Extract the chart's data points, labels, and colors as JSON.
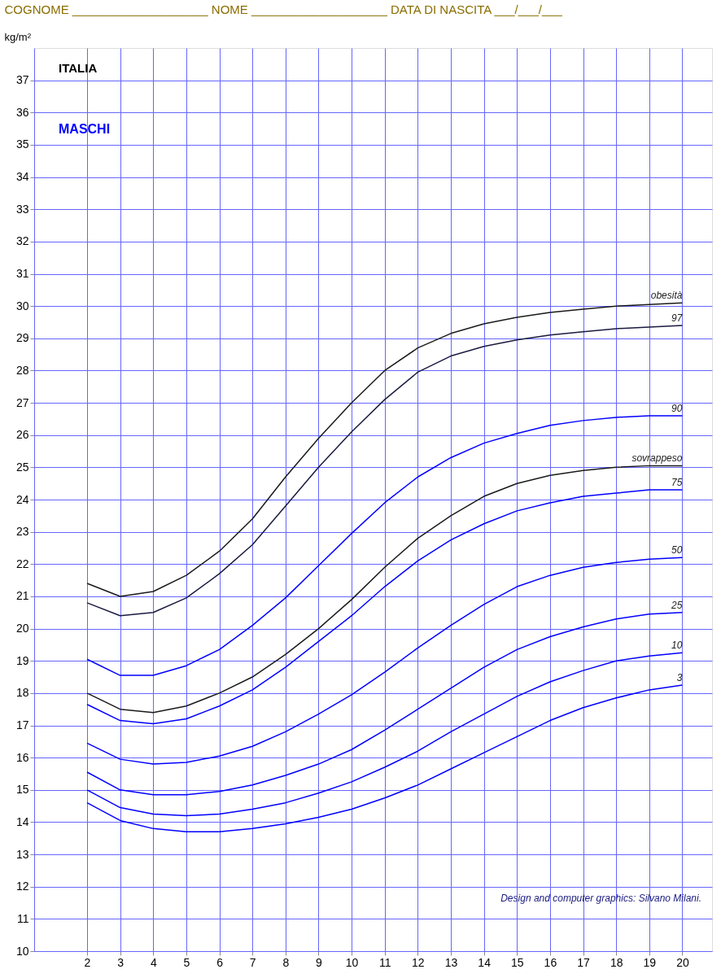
{
  "chart_data": {
    "type": "line",
    "title": "COGNOME ____________________   NOME ____________________   DATA DI NASCITA ___/___/___",
    "ylabel": "kg/m²",
    "x": [
      2,
      3,
      4,
      5,
      6,
      7,
      8,
      9,
      10,
      11,
      12,
      13,
      14,
      15,
      16,
      17,
      18,
      19,
      20
    ],
    "series": [
      {
        "name": "obesità",
        "color": "#1a1a1a",
        "values": [
          21.4,
          21.0,
          21.15,
          21.65,
          22.4,
          23.4,
          24.7,
          25.9,
          27.0,
          28.0,
          28.7,
          29.15,
          29.45,
          29.65,
          29.8,
          29.9,
          30.0,
          30.05,
          30.1
        ]
      },
      {
        "name": "97",
        "color": "#1a1a40",
        "values": [
          20.8,
          20.4,
          20.5,
          20.95,
          21.7,
          22.6,
          23.8,
          25.0,
          26.1,
          27.1,
          27.95,
          28.45,
          28.75,
          28.95,
          29.1,
          29.2,
          29.3,
          29.35,
          29.4
        ]
      },
      {
        "name": "90",
        "color": "#0000ff",
        "values": [
          19.05,
          18.55,
          18.55,
          18.85,
          19.35,
          20.1,
          20.95,
          21.95,
          22.95,
          23.9,
          24.7,
          25.3,
          25.75,
          26.05,
          26.3,
          26.45,
          26.55,
          26.6,
          26.6
        ]
      },
      {
        "name": "sovrappeso",
        "color": "#1a1a1a",
        "values": [
          18.0,
          17.5,
          17.4,
          17.6,
          18.0,
          18.5,
          19.2,
          20.0,
          20.9,
          21.9,
          22.8,
          23.5,
          24.1,
          24.5,
          24.75,
          24.9,
          25.0,
          25.05,
          25.05
        ]
      },
      {
        "name": "75",
        "color": "#0000ff",
        "values": [
          17.65,
          17.15,
          17.05,
          17.2,
          17.6,
          18.1,
          18.8,
          19.6,
          20.4,
          21.3,
          22.1,
          22.75,
          23.25,
          23.65,
          23.9,
          24.1,
          24.2,
          24.3,
          24.3
        ]
      },
      {
        "name": "50",
        "color": "#0000ff",
        "values": [
          16.45,
          15.95,
          15.8,
          15.85,
          16.05,
          16.35,
          16.8,
          17.35,
          17.95,
          18.65,
          19.4,
          20.1,
          20.75,
          21.3,
          21.65,
          21.9,
          22.05,
          22.15,
          22.2
        ]
      },
      {
        "name": "25",
        "color": "#0000ff",
        "values": [
          15.55,
          15.0,
          14.85,
          14.85,
          14.95,
          15.15,
          15.45,
          15.8,
          16.25,
          16.85,
          17.5,
          18.15,
          18.8,
          19.35,
          19.75,
          20.05,
          20.3,
          20.45,
          20.5
        ]
      },
      {
        "name": "10",
        "color": "#0000ff",
        "values": [
          15.0,
          14.45,
          14.25,
          14.2,
          14.25,
          14.4,
          14.6,
          14.9,
          15.25,
          15.7,
          16.2,
          16.8,
          17.35,
          17.9,
          18.35,
          18.7,
          19.0,
          19.15,
          19.25
        ]
      },
      {
        "name": "3",
        "color": "#0000ff",
        "values": [
          14.6,
          14.05,
          13.8,
          13.7,
          13.7,
          13.8,
          13.95,
          14.15,
          14.4,
          14.75,
          15.15,
          15.65,
          16.15,
          16.65,
          17.15,
          17.55,
          17.85,
          18.1,
          18.25
        ]
      }
    ],
    "xlim": [
      0.4,
      20.9
    ],
    "xticks": [
      2,
      3,
      4,
      5,
      6,
      7,
      8,
      9,
      10,
      11,
      12,
      13,
      14,
      15,
      16,
      17,
      18,
      19,
      20
    ],
    "ylim": [
      10,
      38
    ],
    "yticks": [
      10,
      11,
      12,
      13,
      14,
      15,
      16,
      17,
      18,
      19,
      20,
      21,
      22,
      23,
      24,
      25,
      26,
      27,
      28,
      29,
      30,
      31,
      32,
      33,
      34,
      35,
      36,
      37
    ],
    "grid": true,
    "legend": false,
    "marker": "none",
    "line_style": "solid",
    "annotations": [
      "ITALIA",
      "MASCHI",
      "Design and computer graphics: Silvano Milani."
    ]
  }
}
